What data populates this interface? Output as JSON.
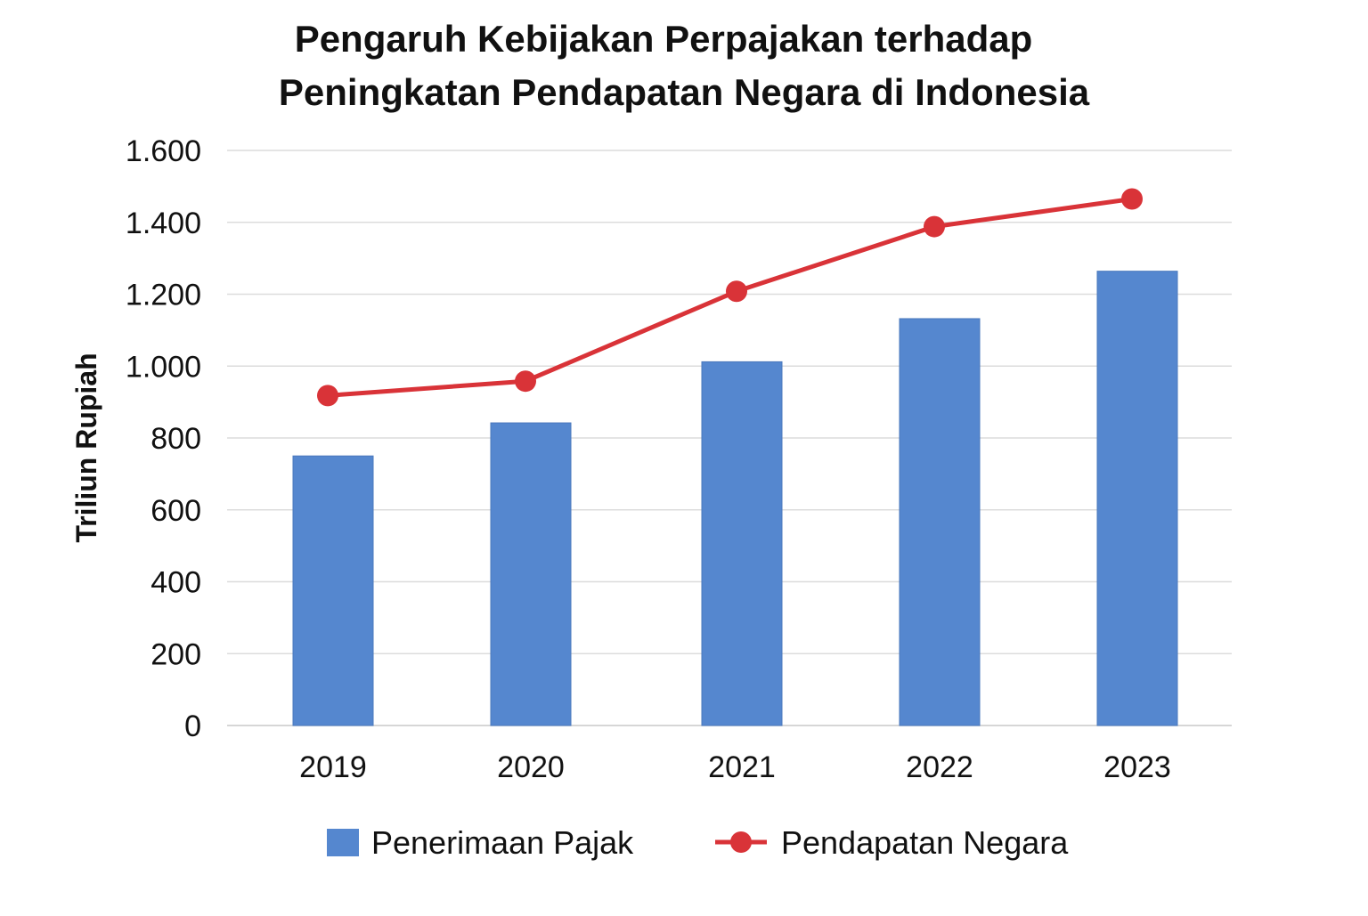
{
  "chart_data": {
    "type": "bar",
    "title": "Pengaruh Kebijakan Perpajakan terhadap Peningkatan Pendapatan Negara di Indonesia",
    "title_lines": [
      "Pengaruh Kebijakan Perpajakan terhadap",
      "Peningkatan Pendapatan Negara di Indonesia"
    ],
    "xlabel": "",
    "ylabel": "Triliun Rupiah",
    "categories": [
      "2019",
      "2020",
      "2021",
      "2022",
      "2023"
    ],
    "ylim": [
      0,
      1600
    ],
    "yticks": [
      0,
      200,
      400,
      600,
      800,
      1000,
      1200,
      1400,
      1600
    ],
    "ytick_labels": [
      "0",
      "200",
      "400",
      "600",
      "800",
      "1.000",
      "1.200",
      "1.400",
      "1.600"
    ],
    "grid": true,
    "legend_position": "bottom",
    "series": [
      {
        "name": "Penerimaan Pajak",
        "type": "bar",
        "color": "#5587cf",
        "values": [
          750,
          842,
          1012,
          1132,
          1264
        ]
      },
      {
        "name": "Pendapatan Negara",
        "type": "line",
        "color": "#d93338",
        "values": [
          918,
          958,
          1208,
          1388,
          1465
        ]
      }
    ]
  }
}
